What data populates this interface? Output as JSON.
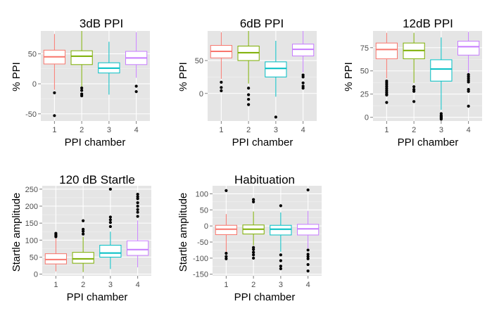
{
  "chart_data": [
    {
      "type": "boxplot",
      "title": "3dB PPI",
      "xlabel": "PPI chamber",
      "ylabel": "% PPI",
      "categories": [
        "1",
        "2",
        "3",
        "4"
      ],
      "colors": [
        "#F8766D",
        "#7CAE00",
        "#00BFC4",
        "#C77CFF"
      ],
      "ylim": [
        -62,
        88
      ],
      "yticks": [
        -50,
        0,
        50
      ],
      "boxes": [
        {
          "lower_whisker": -10,
          "q1": 33,
          "median": 45,
          "q3": 56,
          "upper_whisker": 83,
          "outliers": [
            -15,
            -53
          ]
        },
        {
          "lower_whisker": -5,
          "q1": 32,
          "median": 46,
          "q3": 55,
          "upper_whisker": 88,
          "outliers": [
            -7,
            -11,
            -17,
            -20
          ]
        },
        {
          "lower_whisker": -18,
          "q1": 18,
          "median": 26,
          "q3": 35,
          "upper_whisker": 70,
          "outliers": []
        },
        {
          "lower_whisker": 10,
          "q1": 32,
          "median": 43,
          "q3": 54,
          "upper_whisker": 86,
          "outliers": [
            -4,
            -13
          ]
        }
      ]
    },
    {
      "type": "boxplot",
      "title": "6dB PPI",
      "xlabel": "PPI chamber",
      "ylabel": "% PPI",
      "categories": [
        "1",
        "2",
        "3",
        "4"
      ],
      "colors": [
        "#F8766D",
        "#7CAE00",
        "#00BFC4",
        "#C77CFF"
      ],
      "ylim": [
        -42,
        95
      ],
      "yticks": [
        0,
        50
      ],
      "boxes": [
        {
          "lower_whisker": 22,
          "q1": 54,
          "median": 64,
          "q3": 73,
          "upper_whisker": 93,
          "outliers": [
            17,
            9,
            4
          ]
        },
        {
          "lower_whisker": 15,
          "q1": 50,
          "median": 62,
          "q3": 72,
          "upper_whisker": 95,
          "outliers": [
            8,
            -2,
            -9,
            -17
          ]
        },
        {
          "lower_whisker": -5,
          "q1": 25,
          "median": 38,
          "q3": 48,
          "upper_whisker": 80,
          "outliers": [
            -36
          ]
        },
        {
          "lower_whisker": 32,
          "q1": 57,
          "median": 67,
          "q3": 75,
          "upper_whisker": 95,
          "outliers": [
            28,
            25,
            16,
            11,
            8
          ]
        }
      ]
    },
    {
      "type": "boxplot",
      "title": "12dB PPI",
      "xlabel": "PPI chamber",
      "ylabel": "% PPI",
      "categories": [
        "1",
        "2",
        "3",
        "4"
      ],
      "colors": [
        "#F8766D",
        "#7CAE00",
        "#00BFC4",
        "#C77CFF"
      ],
      "ylim": [
        -4,
        93
      ],
      "yticks": [
        0,
        25,
        50,
        75
      ],
      "boxes": [
        {
          "lower_whisker": 42,
          "q1": 63,
          "median": 73,
          "q3": 80,
          "upper_whisker": 91,
          "outliers": [
            39,
            37,
            35,
            33,
            31,
            29,
            27,
            25,
            24,
            16
          ]
        },
        {
          "lower_whisker": 37,
          "q1": 63,
          "median": 72,
          "q3": 80,
          "upper_whisker": 91,
          "outliers": [
            33,
            30,
            28,
            17
          ]
        },
        {
          "lower_whisker": 8,
          "q1": 39,
          "median": 52,
          "q3": 62,
          "upper_whisker": 86,
          "outliers": [
            4,
            2,
            1,
            0,
            -1,
            -2
          ]
        },
        {
          "lower_whisker": 48,
          "q1": 67,
          "median": 76,
          "q3": 82,
          "upper_whisker": 92,
          "outliers": [
            46,
            44,
            42,
            40,
            38,
            30,
            28,
            12
          ]
        }
      ]
    },
    {
      "type": "boxplot",
      "title": "120 dB Startle",
      "xlabel": "PPI chamber",
      "ylabel": "Startle amplitude",
      "categories": [
        "1",
        "2",
        "3",
        "4"
      ],
      "colors": [
        "#F8766D",
        "#7CAE00",
        "#00BFC4",
        "#C77CFF"
      ],
      "ylim": [
        -5,
        260
      ],
      "yticks": [
        0,
        50,
        100,
        150,
        200,
        250
      ],
      "boxes": [
        {
          "lower_whisker": 8,
          "q1": 30,
          "median": 43,
          "q3": 60,
          "upper_whisker": 105,
          "outliers": [
            110,
            113,
            116,
            120
          ]
        },
        {
          "lower_whisker": 6,
          "q1": 32,
          "median": 45,
          "q3": 64,
          "upper_whisker": 110,
          "outliers": [
            118,
            126,
            132,
            157
          ]
        },
        {
          "lower_whisker": 15,
          "q1": 50,
          "median": 62,
          "q3": 85,
          "upper_whisker": 125,
          "outliers": [
            140,
            152,
            160,
            168,
            250
          ]
        },
        {
          "lower_whisker": 20,
          "q1": 55,
          "median": 72,
          "q3": 98,
          "upper_whisker": 158,
          "outliers": [
            170,
            182,
            190,
            200,
            210,
            222,
            228,
            235
          ]
        }
      ]
    },
    {
      "type": "boxplot",
      "title": "Habituation",
      "xlabel": "PPI chamber",
      "ylabel": "Startle amplitude",
      "categories": [
        "1",
        "2",
        "3",
        "4"
      ],
      "colors": [
        "#F8766D",
        "#7CAE00",
        "#00BFC4",
        "#C77CFF"
      ],
      "ylim": [
        -155,
        125
      ],
      "yticks": [
        -150,
        -100,
        -50,
        0,
        50,
        100
      ],
      "boxes": [
        {
          "lower_whisker": -80,
          "q1": -27,
          "median": -10,
          "q3": 2,
          "upper_whisker": 37,
          "outliers": [
            110,
            -85,
            -95,
            -102
          ]
        },
        {
          "lower_whisker": -60,
          "q1": -25,
          "median": -10,
          "q3": 3,
          "upper_whisker": 45,
          "outliers": [
            82,
            75,
            -67,
            -73,
            -82,
            -90,
            -100
          ]
        },
        {
          "lower_whisker": -80,
          "q1": -28,
          "median": -10,
          "q3": 2,
          "upper_whisker": 42,
          "outliers": [
            63,
            -90,
            -108,
            -125,
            -133
          ]
        },
        {
          "lower_whisker": -70,
          "q1": -28,
          "median": -9,
          "q3": 5,
          "upper_whisker": 47,
          "outliers": [
            112,
            -75,
            -88,
            -95,
            -102,
            -120,
            -140
          ]
        }
      ]
    }
  ]
}
